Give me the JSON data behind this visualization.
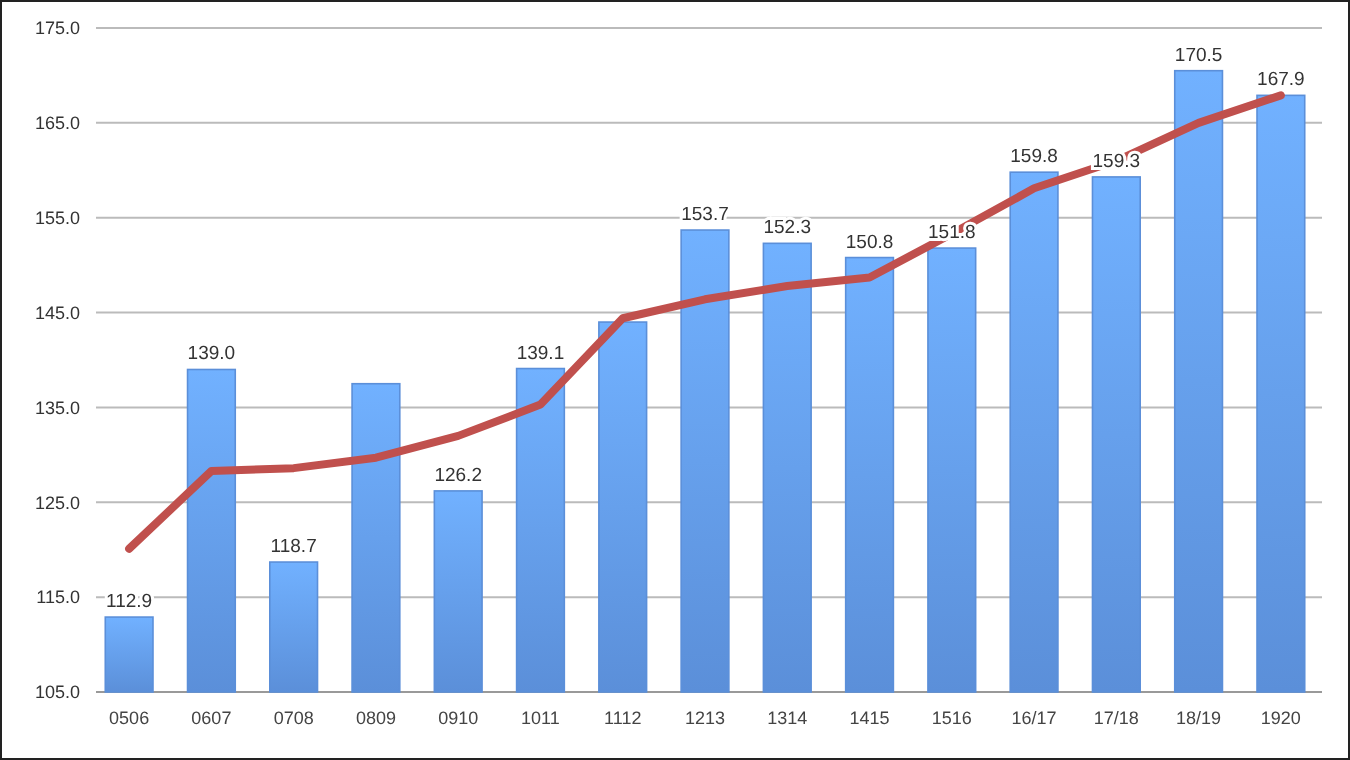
{
  "chart_data": {
    "type": "bar",
    "categories": [
      "0506",
      "0607",
      "0708",
      "0809",
      "0910",
      "1011",
      "1112",
      "1213",
      "1314",
      "1415",
      "1516",
      "16/17",
      "17/18",
      "18/19",
      "1920"
    ],
    "series": [
      {
        "color": "#5b8fd9",
        "values": [
          112.9,
          139.0,
          118.7,
          137.5,
          126.2,
          139.1,
          144.0,
          153.7,
          152.3,
          150.8,
          151.8,
          159.8,
          159.3,
          170.5,
          167.9
        ],
        "value_labels": [
          "112.9",
          "139.0",
          "118.7",
          null,
          "126.2",
          "139.1",
          null,
          "153.7",
          "152.3",
          "150.8",
          "151.8",
          "159.8",
          "159.3",
          "170.5",
          "167.9"
        ]
      },
      {
        "type": "line",
        "color": "#c0504d",
        "values": [
          120.1,
          128.3,
          128.6,
          129.7,
          132.0,
          135.3,
          144.4,
          146.4,
          147.8,
          148.7,
          153.3,
          158.1,
          161.0,
          165.0,
          167.9
        ]
      }
    ],
    "ylim": [
      105,
      175
    ],
    "yticks": [
      {
        "value": 105,
        "label": "105.0"
      },
      {
        "value": 115,
        "label": "115.0"
      },
      {
        "value": 125,
        "label": "125.0"
      },
      {
        "value": 135,
        "label": "135.0"
      },
      {
        "value": 145,
        "label": "145.0"
      },
      {
        "value": 155,
        "label": "155.0"
      },
      {
        "value": 165,
        "label": "165.0"
      },
      {
        "value": 175,
        "label": "175.0"
      }
    ],
    "grid": "y",
    "marker": "none",
    "line_style": "solid"
  }
}
